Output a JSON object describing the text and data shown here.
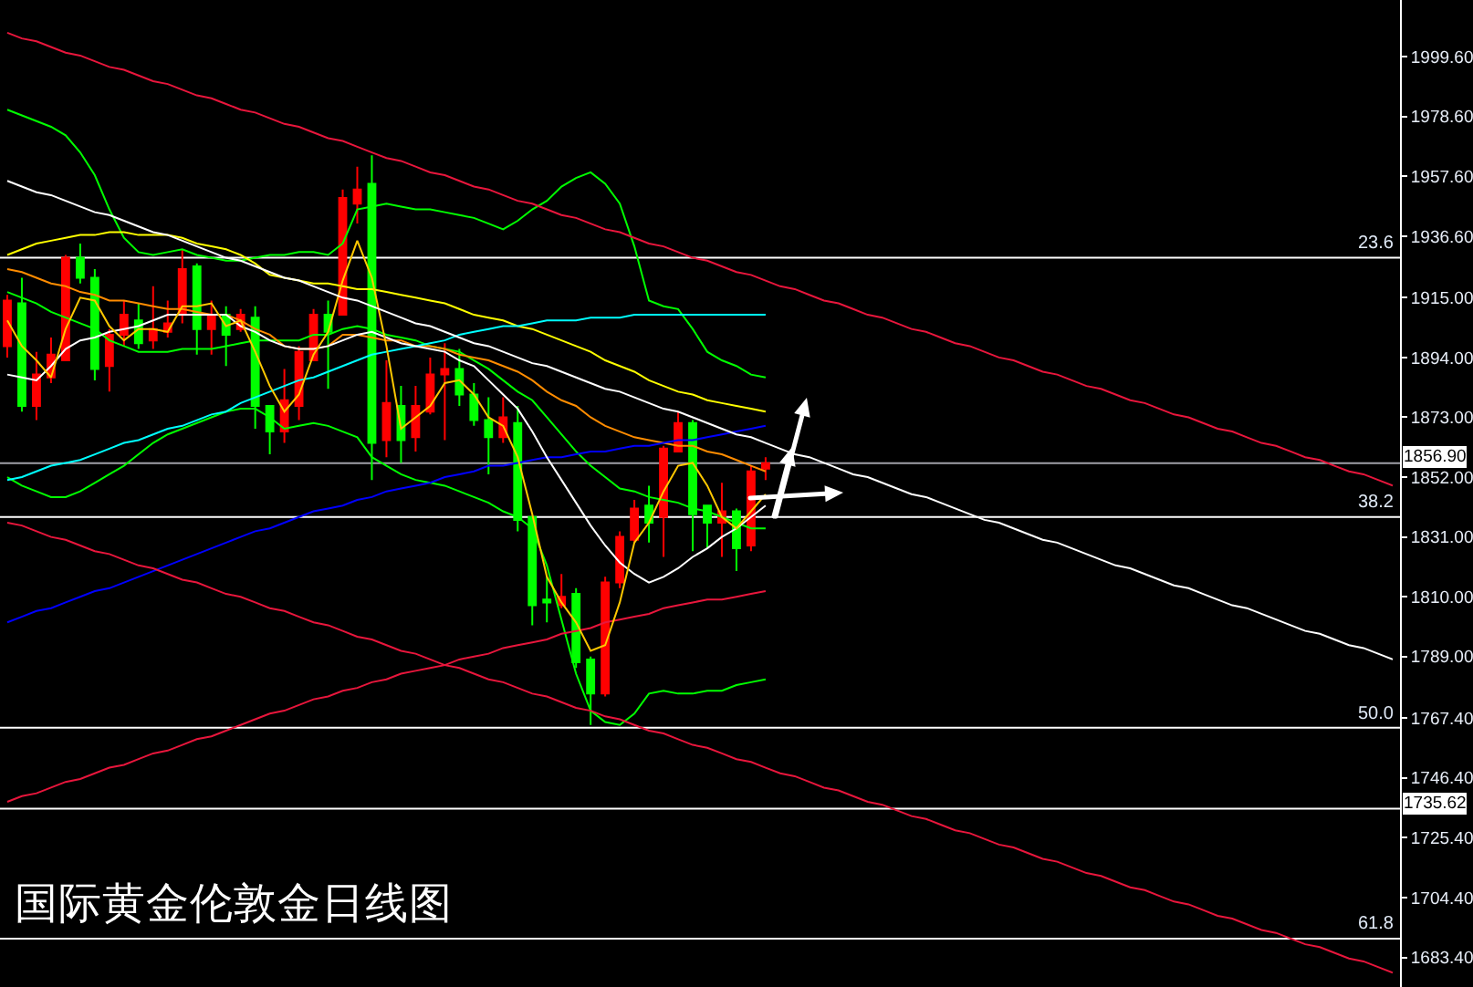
{
  "chart_data": {
    "type": "candlestick",
    "title": "国际黄金伦敦金日线图",
    "categories": [
      null,
      null,
      null,
      null,
      null,
      null,
      null,
      null,
      null,
      null,
      null,
      null,
      null,
      null,
      null,
      null,
      null,
      null,
      null,
      null,
      null,
      null,
      null,
      null,
      null,
      null,
      null,
      null,
      null,
      null,
      null,
      null,
      null,
      null,
      null,
      null,
      null,
      null,
      null,
      null,
      null,
      null,
      null,
      null,
      null,
      null,
      null,
      null,
      null,
      null,
      null,
      null,
      null,
      null,
      null,
      null,
      null,
      null,
      null,
      null,
      null,
      null,
      null,
      null,
      null,
      null,
      null,
      null,
      null,
      null,
      null,
      null,
      null,
      null,
      null,
      null,
      null,
      null,
      null,
      null,
      null,
      null,
      null,
      null,
      null,
      null,
      null,
      null,
      null,
      null,
      null,
      null,
      null,
      null,
      null,
      null
    ],
    "ylim": [
      1673,
      2019.5
    ],
    "yticks": [
      {
        "value": 1999.6,
        "label": "1999.60"
      },
      {
        "value": 1978.6,
        "label": "1978.60"
      },
      {
        "value": 1957.6,
        "label": "1957.60"
      },
      {
        "value": 1936.6,
        "label": "1936.60"
      },
      {
        "value": 1915,
        "label": "1915.00"
      },
      {
        "value": 1894,
        "label": "1894.00"
      },
      {
        "value": 1873,
        "label": "1873.00"
      },
      {
        "value": 1852,
        "label": "1852.00"
      },
      {
        "value": 1831,
        "label": "1831.00"
      },
      {
        "value": 1810,
        "label": "1810.00"
      },
      {
        "value": 1789,
        "label": "1789.00"
      },
      {
        "value": 1767.4,
        "label": "1767.40"
      },
      {
        "value": 1746.4,
        "label": "1746.40"
      },
      {
        "value": 1725.4,
        "label": "1725.40"
      },
      {
        "value": 1704.4,
        "label": "1704.40"
      },
      {
        "value": 1683.4,
        "label": "1683.40"
      }
    ],
    "tick_labels": "y",
    "grid": false,
    "ohlc": [
      [
        1898,
        1916,
        1894,
        1914
      ],
      [
        1913,
        1922,
        1875,
        1877
      ],
      [
        1877,
        1896,
        1872,
        1888
      ],
      [
        1887,
        1901,
        1885,
        1895
      ],
      [
        1893,
        1930,
        1893,
        1929
      ],
      [
        1929,
        1934,
        1920,
        1922
      ],
      [
        1922,
        1925,
        1886,
        1890
      ],
      [
        1891,
        1904,
        1882,
        1902
      ],
      [
        1902,
        1914,
        1898,
        1909
      ],
      [
        1907,
        1913,
        1897,
        1899
      ],
      [
        1900,
        1919,
        1897,
        1904
      ],
      [
        1903,
        1914,
        1901,
        1906
      ],
      [
        1909,
        1932,
        1906,
        1925
      ],
      [
        1926,
        1927,
        1895,
        1904
      ],
      [
        1904,
        1914,
        1895,
        1909
      ],
      [
        1909,
        1912,
        1891,
        1902
      ],
      [
        1904,
        1911,
        1903,
        1909
      ],
      [
        1908,
        1912,
        1869,
        1877
      ],
      [
        1877,
        1877,
        1860,
        1868
      ],
      [
        1868,
        1890,
        1864,
        1879
      ],
      [
        1877,
        1898,
        1872,
        1896
      ],
      [
        1893,
        1911,
        1893,
        1909
      ],
      [
        1909,
        1914,
        1883,
        1903
      ],
      [
        1909,
        1953,
        1909,
        1950
      ],
      [
        1948,
        1961,
        1941,
        1953
      ],
      [
        1955,
        1965,
        1851,
        1864
      ],
      [
        1865,
        1893,
        1859,
        1878
      ],
      [
        1877,
        1884,
        1857,
        1865
      ],
      [
        1866,
        1884,
        1861,
        1877
      ],
      [
        1875,
        1894,
        1874,
        1888
      ],
      [
        1888,
        1899,
        1865,
        1890
      ],
      [
        1890,
        1897,
        1877,
        1881
      ],
      [
        1881,
        1885,
        1870,
        1872
      ],
      [
        1872,
        1880,
        1853,
        1866
      ],
      [
        1866,
        1880,
        1864,
        1873
      ],
      [
        1871,
        1877,
        1833,
        1837
      ],
      [
        1838,
        1838,
        1800,
        1807
      ],
      [
        1809,
        1817,
        1801,
        1808
      ],
      [
        1807,
        1818,
        1806,
        1810
      ],
      [
        1811,
        1813,
        1785,
        1787
      ],
      [
        1788,
        1789,
        1765,
        1776
      ],
      [
        1776,
        1817,
        1775,
        1815
      ],
      [
        1815,
        1833,
        1813,
        1831
      ],
      [
        1830,
        1844,
        1829,
        1841
      ],
      [
        1842,
        1849,
        1829,
        1836
      ],
      [
        1838,
        1863,
        1824,
        1862
      ],
      [
        1861,
        1875,
        1861,
        1871
      ],
      [
        1871,
        1872,
        1826,
        1839
      ],
      [
        1842,
        1842,
        1827,
        1836
      ],
      [
        1836,
        1850,
        1824,
        1840
      ],
      [
        1840,
        1841,
        1819,
        1827
      ],
      [
        1828,
        1856,
        1826,
        1854
      ],
      [
        1855,
        1859,
        1851,
        1856.9
      ],
      null,
      null,
      null,
      null,
      null,
      null,
      null,
      null,
      null,
      null,
      null,
      null,
      null,
      null,
      null,
      null,
      null,
      null,
      null,
      null,
      null,
      null,
      null,
      null,
      null,
      null,
      null,
      null,
      null,
      null,
      null,
      null,
      null,
      null,
      null,
      null,
      null,
      null,
      null,
      null,
      null,
      null,
      null
    ],
    "colors": [
      "#ff0000",
      "#00ff00",
      "#ff0000",
      "#ff0000",
      "#ff0000",
      "#00ff00",
      "#00ff00",
      "#ff0000",
      "#ff0000",
      "#00ff00",
      "#ff0000",
      "#ff0000",
      "#ff0000",
      "#00ff00",
      "#ff0000",
      "#00ff00",
      "#ff0000",
      "#00ff00",
      "#00ff00",
      "#ff0000",
      "#ff0000",
      "#ff0000",
      "#00ff00",
      "#ff0000",
      "#ff0000",
      "#00ff00",
      "#ff0000",
      "#00ff00",
      "#ff0000",
      "#ff0000",
      "#ff0000",
      "#00ff00",
      "#00ff00",
      "#00ff00",
      "#ff0000",
      "#00ff00",
      "#00ff00",
      "#00ff00",
      "#ff0000",
      "#00ff00",
      "#00ff00",
      "#ff0000",
      "#ff0000",
      "#ff0000",
      "#00ff00",
      "#ff0000",
      "#ff0000",
      "#00ff00",
      "#00ff00",
      "#ff0000",
      "#00ff00",
      "#ff0000",
      "#ff0000",
      null,
      null,
      null,
      null,
      null,
      null,
      null,
      null,
      null,
      null,
      null,
      null,
      null,
      null,
      null,
      null,
      null,
      null,
      null,
      null,
      null,
      null,
      null,
      null,
      null,
      null,
      null,
      null,
      null,
      null,
      null,
      null,
      null,
      null,
      null,
      null,
      null,
      null,
      null,
      null,
      null,
      null,
      null
    ],
    "series": [
      {
        "type": "line",
        "color": "#00ff00",
        "values": [
          1981,
          1979,
          1977,
          1975,
          1972,
          1966,
          1958,
          1946,
          1936,
          1931,
          1930,
          1931,
          1932,
          1930,
          1929,
          1928,
          1928,
          1929,
          1930,
          1930,
          1931,
          1931,
          1930,
          1934,
          1946,
          1947,
          1948,
          1947,
          1946,
          1946,
          1945,
          1944,
          1943,
          1941,
          1939,
          1942,
          1946,
          1949,
          1954,
          1957,
          1959,
          1955,
          1948,
          1933,
          1914,
          1912,
          1911,
          1904,
          1896,
          1893,
          1891,
          1888,
          1887,
          null,
          null,
          null,
          null,
          null,
          null,
          null,
          null,
          null,
          null,
          null,
          null,
          null,
          null,
          null,
          null,
          null,
          null,
          null,
          null,
          null,
          null,
          null,
          null,
          null,
          null,
          null,
          null,
          null,
          null,
          null,
          null,
          null,
          null,
          null,
          null,
          null,
          null,
          null,
          null,
          null,
          null,
          null
        ]
      },
      {
        "type": "line",
        "color": "#00ff00",
        "values": [
          1917,
          1915,
          1913,
          1910,
          1908,
          1906,
          1904,
          1900,
          1898,
          1896,
          1896,
          1896,
          1897,
          1897,
          1897,
          1898,
          1899,
          1900,
          1900,
          1900,
          1900,
          1902,
          1902,
          1904,
          1905,
          1904,
          1902,
          1901,
          1900,
          1898,
          1897,
          1896,
          1893,
          1890,
          1886,
          1882,
          1879,
          1873,
          1867,
          1861,
          1856,
          1852,
          1848,
          1847,
          1845,
          1844,
          1843,
          1841,
          1840,
          1838,
          1836,
          1834,
          1834,
          null,
          null,
          null,
          null,
          null,
          null,
          null,
          null,
          null,
          null,
          null,
          null,
          null,
          null,
          null,
          null,
          null,
          null,
          null,
          null,
          null,
          null,
          null,
          null,
          null,
          null,
          null,
          null,
          null,
          null,
          null,
          null,
          null,
          null,
          null,
          null,
          null,
          null,
          null,
          null,
          null,
          null,
          null
        ]
      },
      {
        "type": "line",
        "color": "#00ff00",
        "values": [
          1852,
          1849,
          1847,
          1845,
          1845,
          1847,
          1850,
          1853,
          1856,
          1860,
          1864,
          1867,
          1869,
          1871,
          1873,
          1875,
          1876,
          1876,
          1873,
          1869,
          1870,
          1871,
          1870,
          1868,
          1866,
          1859,
          1856,
          1853,
          1851,
          1850,
          1849,
          1847,
          1845,
          1843,
          1840,
          1838,
          1834,
          1821,
          1802,
          1783,
          1770,
          1766,
          1765,
          1769,
          1776,
          1777,
          1776,
          1776,
          1777,
          1777,
          1779,
          1780,
          1781,
          null,
          null,
          null,
          null,
          null,
          null,
          null,
          null,
          null,
          null,
          null,
          null,
          null,
          null,
          null,
          null,
          null,
          null,
          null,
          null,
          null,
          null,
          null,
          null,
          null,
          null,
          null,
          null,
          null,
          null,
          null,
          null,
          null,
          null,
          null,
          null,
          null,
          null,
          null,
          null,
          null,
          null,
          null
        ]
      },
      {
        "type": "line",
        "color": "#ffff00",
        "values": [
          1930,
          1932,
          1934,
          1935,
          1936,
          1937,
          1937,
          1938,
          1938,
          1937,
          1937,
          1937,
          1936,
          1934,
          1933,
          1932,
          1930,
          1927,
          1923,
          1922,
          1921,
          1920,
          1920,
          1919,
          1918,
          1918,
          1917,
          1916,
          1915,
          1914,
          1913,
          1911,
          1909,
          1908,
          1907,
          1905,
          1904,
          1902,
          1900,
          1898,
          1896,
          1893,
          1891,
          1889,
          1886,
          1884,
          1882,
          1881,
          1879,
          1878,
          1877,
          1876,
          1875,
          null,
          null,
          null,
          null,
          null,
          null,
          null,
          null,
          null,
          null,
          null,
          null,
          null,
          null,
          null,
          null,
          null,
          null,
          null,
          null,
          null,
          null,
          null,
          null,
          null,
          null,
          null,
          null,
          null,
          null,
          null,
          null,
          null,
          null,
          null,
          null,
          null,
          null,
          null,
          null,
          null,
          null,
          null
        ]
      },
      {
        "type": "line",
        "color": "#ff8c00",
        "values": [
          1925,
          1924,
          1922,
          1920,
          1919,
          1917,
          1916,
          1914,
          1914,
          1913,
          1912,
          1911,
          1911,
          1910,
          1909,
          1909,
          1907,
          1904,
          1902,
          1898,
          1897,
          1897,
          1898,
          1902,
          1902,
          1901,
          1900,
          1900,
          1898,
          1898,
          1897,
          1895,
          1894,
          1893,
          1891,
          1889,
          1886,
          1882,
          1879,
          1877,
          1873,
          1870,
          1868,
          1866,
          1865,
          1864,
          1863,
          1863,
          1861,
          1860,
          1858,
          1856,
          1854,
          null,
          null,
          null,
          null,
          null,
          null,
          null,
          null,
          null,
          null,
          null,
          null,
          null,
          null,
          null,
          null,
          null,
          null,
          null,
          null,
          null,
          null,
          null,
          null,
          null,
          null,
          null,
          null,
          null,
          null,
          null,
          null,
          null,
          null,
          null,
          null,
          null,
          null,
          null,
          null,
          null,
          null,
          null
        ]
      },
      {
        "type": "line",
        "color": "#00ffff",
        "values": [
          1851,
          1852,
          1854,
          1856,
          1857,
          1858,
          1860,
          1862,
          1864,
          1865,
          1867,
          1869,
          1870,
          1872,
          1874,
          1875,
          1878,
          1880,
          1882,
          1884,
          1886,
          1887,
          1889,
          1891,
          1893,
          1895,
          1896,
          1897,
          1898,
          1899,
          1900,
          1902,
          1903,
          1904,
          1905,
          1905,
          1906,
          1907,
          1907,
          1907,
          1908,
          1908,
          1908,
          1909,
          1909,
          1909,
          1909,
          1909,
          1909,
          1909,
          1909,
          1909,
          1909,
          null,
          null,
          null,
          null,
          null,
          null,
          null,
          null,
          null,
          null,
          null,
          null,
          null,
          null,
          null,
          null,
          null,
          null,
          null,
          null,
          null,
          null,
          null,
          null,
          null,
          null,
          null,
          null,
          null,
          null,
          null,
          null,
          null,
          null,
          null,
          null,
          null,
          null,
          null,
          null,
          null,
          null,
          null
        ]
      },
      {
        "type": "line",
        "color": "#0000ff",
        "values": [
          1801,
          1803,
          1805,
          1806,
          1808,
          1810,
          1812,
          1813,
          1815,
          1817,
          1819,
          1821,
          1823,
          1825,
          1827,
          1829,
          1831,
          1833,
          1834,
          1836,
          1838,
          1840,
          1841,
          1842,
          1844,
          1845,
          1847,
          1848,
          1849,
          1850,
          1852,
          1853,
          1854,
          1856,
          1856,
          1857,
          1858,
          1859,
          1859,
          1860,
          1861,
          1861,
          1862,
          1863,
          1863,
          1864,
          1865,
          1865,
          1866,
          1867,
          1868,
          1869,
          1870,
          null,
          null,
          null,
          null,
          null,
          null,
          null,
          null,
          null,
          null,
          null,
          null,
          null,
          null,
          null,
          null,
          null,
          null,
          null,
          null,
          null,
          null,
          null,
          null,
          null,
          null,
          null,
          null,
          null,
          null,
          null,
          null,
          null,
          null,
          null,
          null,
          null,
          null,
          null,
          null,
          null,
          null,
          null
        ]
      },
      {
        "type": "line",
        "color": "#e8163c",
        "values": [
          1738,
          1740,
          1741,
          1743,
          1745,
          1746,
          1748,
          1750,
          1751,
          1753,
          1755,
          1756,
          1758,
          1760,
          1761,
          1763,
          1765,
          1767,
          1769,
          1770,
          1772,
          1774,
          1775,
          1777,
          1778,
          1780,
          1781,
          1783,
          1784,
          1785,
          1786,
          1788,
          1789,
          1790,
          1792,
          1793,
          1794,
          1795,
          1797,
          1798,
          1799,
          1801,
          1802,
          1803,
          1804,
          1806,
          1807,
          1808,
          1809,
          1809,
          1810,
          1811,
          1812,
          null,
          null,
          null,
          null,
          null,
          null,
          null,
          null,
          null,
          null,
          null,
          null,
          null,
          null,
          null,
          null,
          null,
          null,
          null,
          null,
          null,
          null,
          null,
          null,
          null,
          null,
          null,
          null,
          null,
          null,
          null,
          null,
          null,
          null,
          null,
          null,
          null,
          null,
          null,
          null,
          null,
          null,
          null
        ]
      },
      {
        "type": "line",
        "color": "#ffffff",
        "values": [
          1888,
          1887,
          1886,
          1891,
          1897,
          1900,
          1901,
          1903,
          1904,
          1905,
          1907,
          1909,
          1909,
          1909,
          1909,
          1909,
          1905,
          1903,
          1900,
          1898,
          1897,
          1897,
          1898,
          1900,
          1902,
          1903,
          1901,
          1899,
          1898,
          1897,
          1896,
          1893,
          1891,
          1886,
          1881,
          1876,
          1868,
          1859,
          1851,
          1843,
          1835,
          1828,
          1822,
          1818,
          1815,
          1817,
          1820,
          1824,
          1827,
          1831,
          1834,
          1838,
          1842,
          null,
          null,
          null,
          null,
          null,
          null,
          null,
          null,
          null,
          null,
          null,
          null,
          null,
          null,
          null,
          null,
          null,
          null,
          null,
          null,
          null,
          null,
          null,
          null,
          null,
          null,
          null,
          null,
          null,
          null,
          null,
          null,
          null,
          null,
          null,
          null,
          null,
          null,
          null,
          null,
          null,
          null,
          null
        ]
      },
      {
        "type": "line",
        "color": "#ffc800",
        "values": [
          1907,
          1898,
          1893,
          1887,
          1904,
          1915,
          1914,
          1905,
          1900,
          1904,
          1904,
          1903,
          1912,
          1912,
          1913,
          1905,
          1907,
          1896,
          1884,
          1875,
          1881,
          1895,
          1903,
          1921,
          1935,
          1922,
          1898,
          1869,
          1873,
          1877,
          1885,
          1886,
          1881,
          1873,
          1870,
          1859,
          1839,
          1817,
          1808,
          1801,
          1791,
          1793,
          1808,
          1829,
          1836,
          1847,
          1856,
          1857,
          1849,
          1838,
          1834,
          1840,
          1846,
          null,
          null,
          null,
          null,
          null,
          null,
          null,
          null,
          null,
          null,
          null,
          null,
          null,
          null,
          null,
          null,
          null,
          null,
          null,
          null,
          null,
          null,
          null,
          null,
          null,
          null,
          null,
          null,
          null,
          null,
          null,
          null,
          null,
          null,
          null,
          null,
          null,
          null,
          null,
          null,
          null,
          null,
          null
        ]
      },
      {
        "type": "line",
        "color": "#e8163c",
        "values": [
          2008,
          2006,
          2005,
          2003,
          2001,
          2000,
          1998,
          1996,
          1995,
          1993,
          1991,
          1990,
          1988,
          1986,
          1985,
          1983,
          1981,
          1980,
          1978,
          1976,
          1975,
          1973,
          1971,
          1970,
          1968,
          1966,
          1964,
          1963,
          1961,
          1959,
          1958,
          1956,
          1954,
          1953,
          1951,
          1949,
          1948,
          1946,
          1944,
          1943,
          1941,
          1939,
          1938,
          1936,
          1934,
          1933,
          1931,
          1929,
          1928,
          1926,
          1924,
          1923,
          1921,
          1919,
          1918,
          1916,
          1914,
          1913,
          1911,
          1909,
          1908,
          1906,
          1904,
          1903,
          1901,
          1899,
          1898,
          1896,
          1894,
          1893,
          1891,
          1889,
          1888,
          1886,
          1884,
          1883,
          1881,
          1879,
          1878,
          1876,
          1874,
          1873,
          1871,
          1869,
          1868,
          1866,
          1864,
          1863,
          1861,
          1859,
          1858,
          1856,
          1854,
          1853,
          1851,
          1849
        ]
      },
      {
        "type": "line",
        "color": "#e8163c",
        "values": [
          1836,
          1835,
          1833,
          1831,
          1830,
          1828,
          1826,
          1825,
          1823,
          1821,
          1820,
          1818,
          1816,
          1815,
          1813,
          1811,
          1810,
          1808,
          1806,
          1805,
          1803,
          1801,
          1800,
          1798,
          1796,
          1795,
          1793,
          1791,
          1790,
          1788,
          1786,
          1785,
          1783,
          1781,
          1780,
          1778,
          1776,
          1775,
          1773,
          1771,
          1770,
          1768,
          1767,
          1765,
          1763,
          1762,
          1760,
          1758,
          1757,
          1755,
          1753,
          1752,
          1750,
          1748,
          1747,
          1745,
          1743,
          1742,
          1740,
          1738,
          1737,
          1735,
          1733,
          1732,
          1730,
          1728,
          1727,
          1725,
          1723,
          1722,
          1720,
          1718,
          1717,
          1715,
          1713,
          1712,
          1710,
          1708,
          1707,
          1705,
          1703,
          1702,
          1700,
          1698,
          1697,
          1695,
          1693,
          1692,
          1690,
          1688,
          1687,
          1685,
          1683,
          1682,
          1680,
          1678
        ]
      },
      {
        "type": "line",
        "color": "#ffffff",
        "values": [
          1956,
          1954,
          1952,
          1951,
          1949,
          1947,
          1945,
          1944,
          1942,
          1940,
          1938,
          1937,
          1935,
          1933,
          1931,
          1929,
          1928,
          1926,
          1924,
          1922,
          1921,
          1919,
          1917,
          1915,
          1914,
          1912,
          1910,
          1908,
          1906,
          1905,
          1903,
          1901,
          1899,
          1898,
          1896,
          1894,
          1892,
          1891,
          1889,
          1887,
          1885,
          1883,
          1882,
          1880,
          1878,
          1876,
          1875,
          1873,
          1871,
          1869,
          1867,
          1866,
          1864,
          1862,
          1860,
          1859,
          1857,
          1855,
          1853,
          1852,
          1850,
          1848,
          1846,
          1845,
          1843,
          1841,
          1839,
          1837,
          1836,
          1834,
          1832,
          1830,
          1829,
          1827,
          1825,
          1823,
          1821,
          1820,
          1818,
          1816,
          1814,
          1813,
          1811,
          1809,
          1807,
          1806,
          1804,
          1802,
          1800,
          1798,
          1797,
          1795,
          1793,
          1792,
          1790,
          1788
        ]
      }
    ],
    "ref_lines": [
      {
        "axis": "y",
        "value": 1929,
        "color": "#ffffff"
      },
      {
        "axis": "y",
        "value": 1838,
        "color": "#ffffff"
      },
      {
        "axis": "y",
        "value": 1764,
        "color": "#ffffff"
      },
      {
        "axis": "y",
        "value": 1690,
        "color": "#ffffff"
      },
      {
        "axis": "y",
        "value": 1856.9,
        "label": "1856.90",
        "color": "#a0a0a8"
      },
      {
        "axis": "y",
        "value": 1735.62,
        "label": "1735.62",
        "color": "#ffffff"
      }
    ],
    "annotations": [
      {
        "text": "23.6",
        "y": 1929
      },
      {
        "text": "38.2",
        "y": 1838
      },
      {
        "text": "50.0",
        "y": 1764
      },
      {
        "text": "61.8",
        "y": 1690
      }
    ]
  }
}
